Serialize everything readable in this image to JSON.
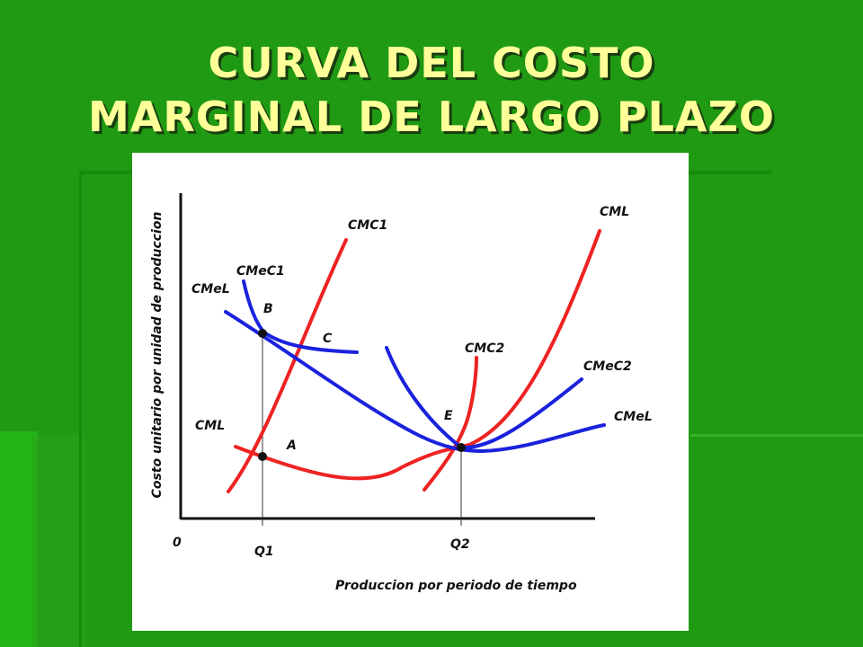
{
  "title": {
    "line1": "CURVA DEL COSTO",
    "line2": "MARGINAL DE LARGO PLAZO"
  },
  "diagram": {
    "y_axis_label": "Costo unitario por unidad de produccion",
    "x_axis_label": "Produccion por periodo de tiempo",
    "origin_label": "0",
    "tick_labels": [
      "Q1",
      "Q2"
    ],
    "curve_labels": {
      "cmc1": "CMC1",
      "cmec1": "CMeC1",
      "cmel_left": "CMeL",
      "cml_left": "CML",
      "cmc2": "CMC2",
      "cml_right": "CML",
      "cmec2": "CMeC2",
      "cmel_right": "CMeL"
    },
    "point_labels": {
      "a": "A",
      "b": "B",
      "c": "C",
      "e": "E"
    },
    "colors": {
      "red_curves": "#ee2222",
      "blue_curves": "#1a22dd",
      "axes": "#111111",
      "panel": "#ffffff"
    }
  }
}
